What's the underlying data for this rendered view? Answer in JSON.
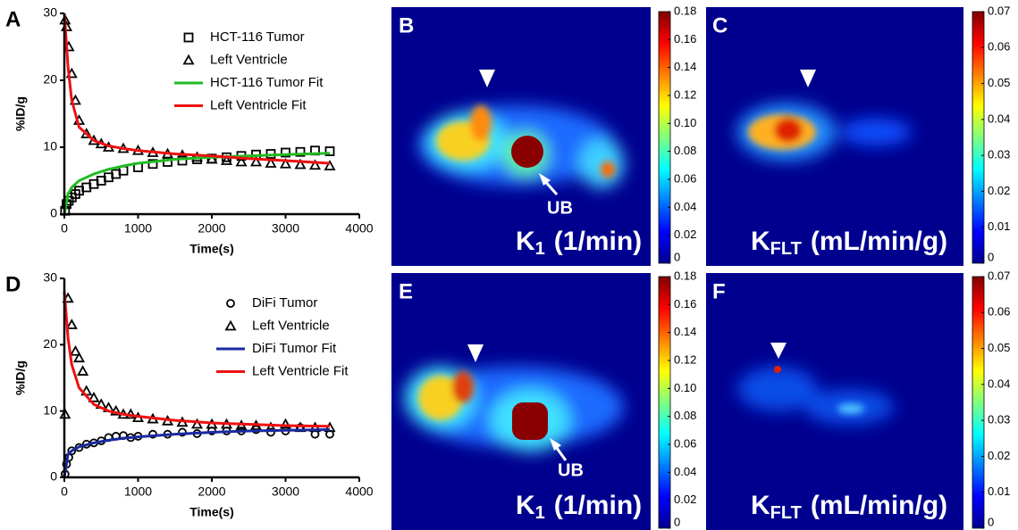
{
  "chart_data": [
    {
      "type": "line",
      "panel_label": "A",
      "ylabel": "%ID/g",
      "xlabel": "Time(s)",
      "xlim": [
        0,
        4000
      ],
      "xticks": [
        0,
        1000,
        2000,
        3000,
        4000
      ],
      "ylim": [
        0,
        30
      ],
      "yticks": [
        0,
        10,
        20,
        30
      ],
      "series": [
        {
          "name": "HCT-116 Tumor",
          "color": "#000000",
          "marker": "square",
          "x": [
            10,
            30,
            60,
            100,
            150,
            200,
            300,
            400,
            500,
            600,
            700,
            800,
            1000,
            1200,
            1400,
            1600,
            1800,
            2000,
            2200,
            2400,
            2600,
            2800,
            3000,
            3200,
            3400,
            3600
          ],
          "values": [
            0.5,
            1.5,
            2,
            2.5,
            3,
            3.5,
            4,
            4.5,
            5,
            5.5,
            6,
            6.5,
            7,
            7.5,
            7.8,
            8,
            8.2,
            8.3,
            8.5,
            8.7,
            8.9,
            9,
            9.2,
            9.3,
            9.5,
            9.4
          ]
        },
        {
          "name": "Left Ventricle",
          "color": "#000000",
          "marker": "triangle",
          "x": [
            10,
            30,
            60,
            100,
            150,
            200,
            300,
            400,
            500,
            600,
            800,
            1000,
            1200,
            1400,
            1600,
            1800,
            2000,
            2200,
            2400,
            2600,
            2800,
            3000,
            3200,
            3400,
            3600
          ],
          "values": [
            29,
            28,
            25,
            21,
            17,
            14,
            12,
            11,
            10.5,
            10,
            9.8,
            9.5,
            9.2,
            9,
            8.8,
            8.5,
            8.2,
            8,
            7.8,
            7.8,
            7.6,
            7.5,
            7.4,
            7.3,
            7.2
          ]
        },
        {
          "name": "HCT-116 Tumor Fit",
          "color": "#22bb22",
          "marker": "none",
          "x": [
            0,
            50,
            100,
            200,
            400,
            600,
            800,
            1000,
            1500,
            2000,
            2500,
            3000,
            3600
          ],
          "values": [
            0,
            3,
            4,
            5,
            6,
            6.7,
            7.2,
            7.6,
            8.2,
            8.5,
            8.7,
            8.9,
            9.1
          ]
        },
        {
          "name": "Left Ventricle Fit",
          "color": "#ee1111",
          "marker": "none",
          "x": [
            0,
            50,
            100,
            200,
            400,
            600,
            800,
            1000,
            1500,
            2000,
            2500,
            3000,
            3600
          ],
          "values": [
            30,
            22,
            17,
            13,
            11,
            10.2,
            9.8,
            9.5,
            9,
            8.7,
            8.3,
            8,
            7.6
          ]
        }
      ]
    },
    {
      "type": "line",
      "panel_label": "D",
      "ylabel": "%ID/g",
      "xlabel": "Time(s)",
      "xlim": [
        0,
        4000
      ],
      "xticks": [
        0,
        1000,
        2000,
        3000,
        4000
      ],
      "ylim": [
        0,
        30
      ],
      "yticks": [
        0,
        10,
        20,
        30
      ],
      "series": [
        {
          "name": "DiFi Tumor",
          "color": "#000000",
          "marker": "circle",
          "x": [
            10,
            30,
            60,
            100,
            200,
            300,
            400,
            500,
            600,
            700,
            800,
            900,
            1000,
            1200,
            1400,
            1600,
            1800,
            2000,
            2200,
            2400,
            2600,
            2800,
            3000,
            3200,
            3400,
            3600
          ],
          "values": [
            0.5,
            2,
            3,
            4,
            4.5,
            5,
            5.2,
            5.5,
            6,
            6.2,
            6.3,
            6,
            6.2,
            6.5,
            6.5,
            6.8,
            6.6,
            7,
            7,
            7,
            7.2,
            6.8,
            7,
            7.5,
            6.5,
            6.5
          ]
        },
        {
          "name": "Left Ventricle",
          "color": "#000000",
          "marker": "triangle",
          "x": [
            10,
            50,
            100,
            150,
            200,
            250,
            300,
            400,
            500,
            600,
            700,
            800,
            900,
            1000,
            1200,
            1400,
            1600,
            1800,
            2000,
            2200,
            2400,
            2600,
            2800,
            3000,
            3200,
            3400,
            3600
          ],
          "values": [
            9.5,
            27,
            23,
            19,
            18,
            16,
            13,
            12,
            11,
            10.5,
            10,
            9.5,
            9.5,
            9,
            8.8,
            8.5,
            8.3,
            8,
            8,
            8,
            7.8,
            7.8,
            7.5,
            8,
            7.5,
            7.5,
            7.5
          ]
        },
        {
          "name": "DiFi Tumor Fit",
          "color": "#1a2aa0",
          "marker": "none",
          "x": [
            0,
            50,
            100,
            200,
            400,
            600,
            800,
            1000,
            1500,
            2000,
            2500,
            3000,
            3600
          ],
          "values": [
            0,
            3.5,
            4,
            4.6,
            5.2,
            5.6,
            5.9,
            6.1,
            6.5,
            6.8,
            7,
            7.1,
            7.2
          ]
        },
        {
          "name": "Left Ventricle Fit",
          "color": "#ee1111",
          "marker": "none",
          "x": [
            0,
            50,
            100,
            200,
            400,
            600,
            800,
            1000,
            1500,
            2000,
            2500,
            3000,
            3600
          ],
          "values": [
            28,
            21,
            17,
            13.5,
            11,
            10,
            9.5,
            9.2,
            8.6,
            8.2,
            8,
            7.8,
            7.7
          ]
        }
      ]
    }
  ],
  "images": [
    {
      "panel_label": "B",
      "label": "K",
      "label_sub": "1",
      "label_unit": "(1/min)",
      "annotation": "UB",
      "colorbar": {
        "lim": [
          0,
          0.18
        ],
        "ticks": [
          0,
          0.02,
          0.04,
          0.06,
          0.08,
          {
            "value": 0.1,
            "label": "0.10"
          },
          0.12,
          0.14,
          0.16,
          0.18
        ]
      }
    },
    {
      "panel_label": "C",
      "label": "K",
      "label_sub": "FLT",
      "label_unit": "(mL/min/g)",
      "colorbar": {
        "lim": [
          0,
          0.07
        ],
        "ticks": [
          0,
          0.01,
          0.02,
          0.03,
          0.04,
          0.05,
          0.06,
          0.07
        ]
      }
    },
    {
      "panel_label": "E",
      "label": "K",
      "label_sub": "1",
      "label_unit": "(1/min)",
      "annotation": "UB",
      "colorbar": {
        "lim": [
          0,
          0.18
        ],
        "ticks": [
          0,
          0.02,
          0.04,
          0.06,
          0.08,
          {
            "value": 0.1,
            "label": "0.10"
          },
          0.12,
          0.14,
          0.16,
          0.18
        ]
      }
    },
    {
      "panel_label": "F",
      "label": "K",
      "label_sub": "FLT",
      "label_unit": "(mL/min/g)",
      "colorbar": {
        "lim": [
          0,
          0.07
        ],
        "ticks": [
          0,
          0.01,
          0.02,
          0.03,
          0.04,
          0.05,
          0.06,
          0.07
        ]
      }
    }
  ]
}
